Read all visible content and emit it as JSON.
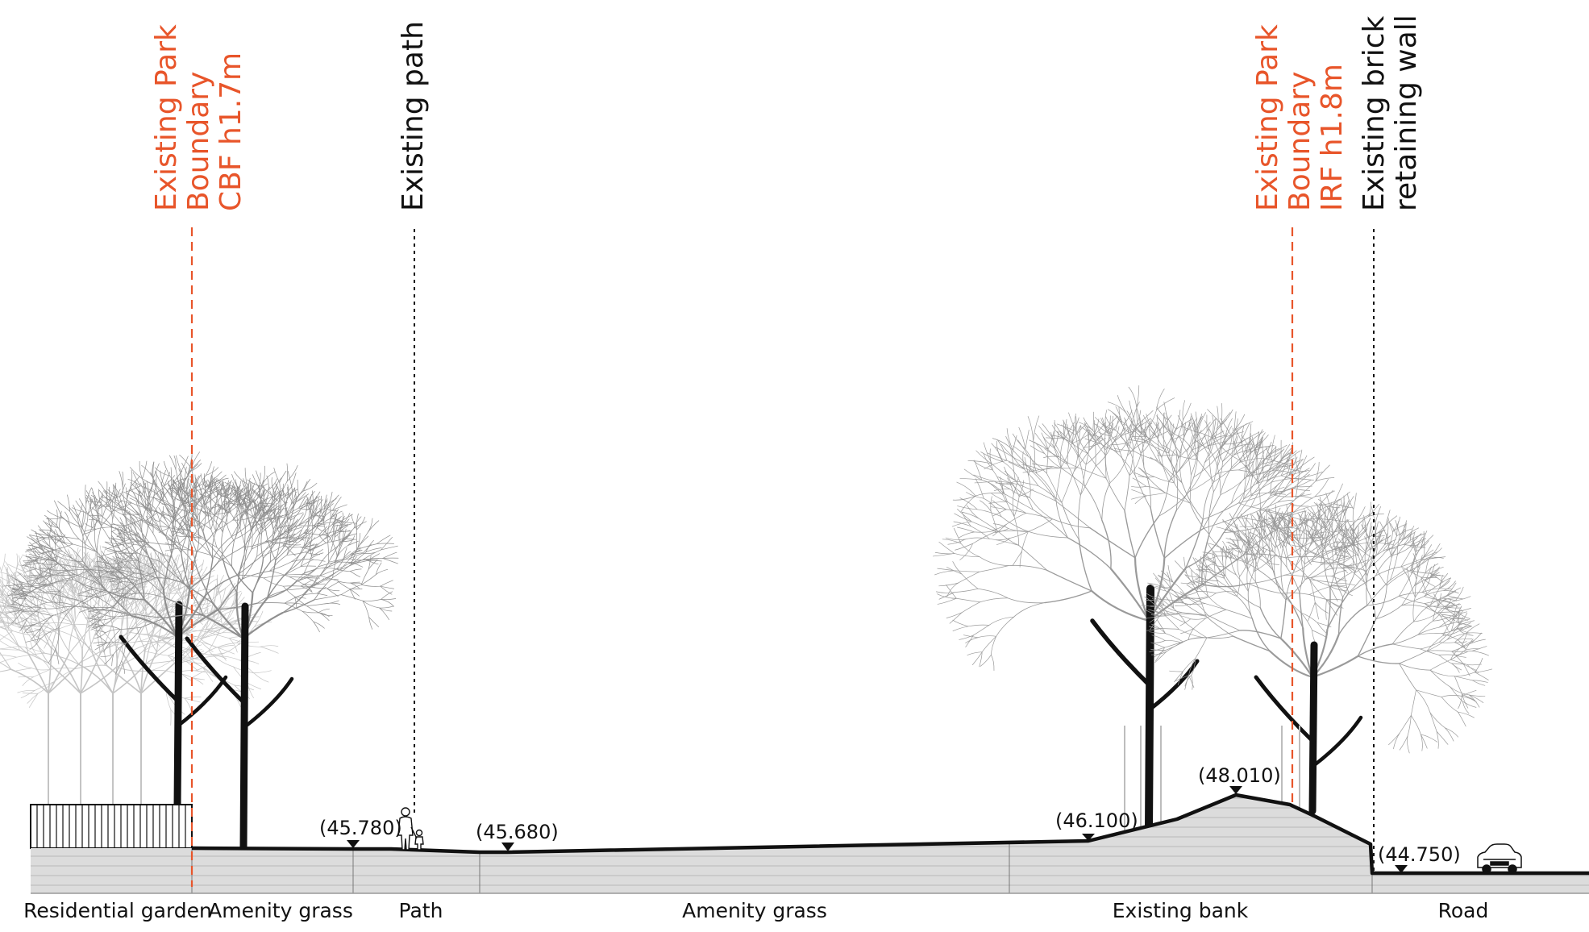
{
  "colors": {
    "boundary": "#e8552a",
    "ink": "#111111",
    "ground_fill": "#dcdcdc",
    "tree_branches": "#9a9a9a"
  },
  "annotations": [
    {
      "id": "park-boundary-left",
      "lines": [
        "Existing Park",
        "Boundary",
        "CBF h1.7m"
      ],
      "style": "boundary"
    },
    {
      "id": "existing-path",
      "lines": [
        "Existing path"
      ],
      "style": "ink"
    },
    {
      "id": "park-boundary-right",
      "lines": [
        "Existing Park",
        "Boundary",
        "IRF h1.8m"
      ],
      "style": "boundary"
    },
    {
      "id": "retaining-wall",
      "lines": [
        "Existing brick",
        "retaining wall"
      ],
      "style": "ink"
    }
  ],
  "levels": [
    "(45.780)",
    "(45.680)",
    "(46.100)",
    "(48.010)",
    "(44.750)"
  ],
  "zones": [
    "Residential garden",
    "Amenity grass",
    "Path",
    "Amenity grass",
    "Existing bank",
    "Road"
  ],
  "icons": [
    "pedestrians-icon",
    "car-icon",
    "fence-icon",
    "tree-icon"
  ]
}
